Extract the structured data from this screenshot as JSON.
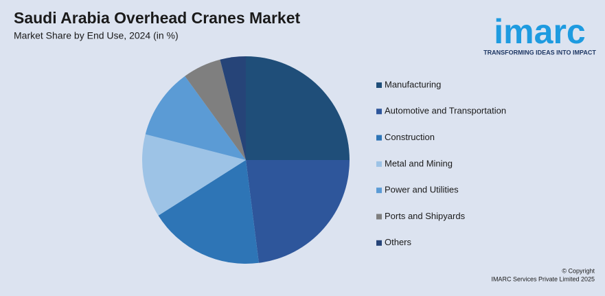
{
  "chart_data": {
    "type": "pie",
    "title": "Saudi Arabia Overhead Cranes Market",
    "subtitle": "Market Share by End Use, 2024 (in %)",
    "categories": [
      "Manufacturing",
      "Automotive and Transportation",
      "Construction",
      "Metal and Mining",
      "Power and Utilities",
      "Ports and Shipyards",
      "Others"
    ],
    "values": [
      25,
      23,
      18,
      13,
      11,
      6,
      4
    ],
    "colors": [
      "#1f4e79",
      "#2e569b",
      "#2e75b6",
      "#9dc3e6",
      "#5b9bd5",
      "#7f7f7f",
      "#264478"
    ],
    "legend": "right"
  },
  "logo": {
    "name": "imarc",
    "tagline": "TRANSFORMING IDEAS INTO IMPACT"
  },
  "copyright": [
    "© Copyright",
    "IMARC Services Private Limited 2025"
  ]
}
